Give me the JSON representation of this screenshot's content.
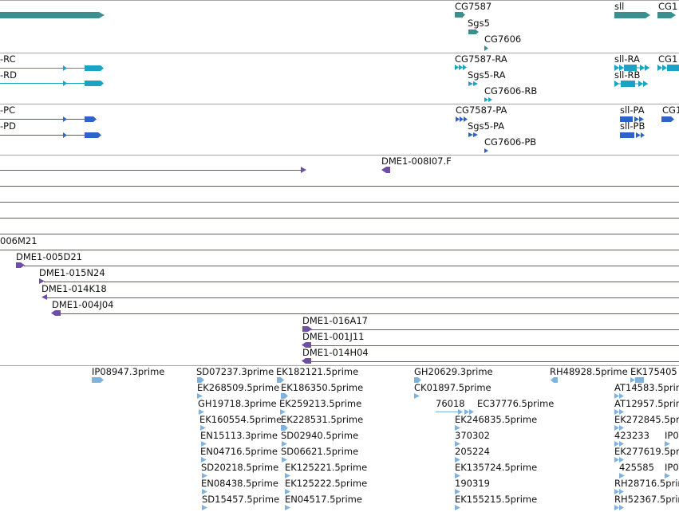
{
  "colors": {
    "gene": "#3a8f8f",
    "transcript_rna": "#1aa3c4",
    "transcript_pep": "#2f63c9",
    "bac": "#6e4fa3",
    "est": "#7fb3df",
    "divider": "#a8a8a8"
  },
  "tracks": {
    "genes": [
      "CG7587",
      "Sgs5",
      "CG7606",
      "sll",
      "CG1"
    ],
    "transcripts": [
      "-RC",
      "-RD",
      "CG7587-RA",
      "Sgs5-RA",
      "CG7606-RB",
      "sll-RA",
      "sll-RB",
      "CG1"
    ],
    "peptides": [
      "-PC",
      "-PD",
      "CG7587-PA",
      "Sgs5-PA",
      "CG7606-PB",
      "sll-PA",
      "sll-PB",
      "CG1"
    ],
    "bacs": [
      "DME1-008I07.F",
      "006M21",
      "DME1-005D21",
      "DME1-015N24",
      "DME1-014K18",
      "DME1-004J04",
      "DME1-016A17",
      "DME1-001J11",
      "DME1-014H04"
    ],
    "ests": [
      "IP08947.3prime",
      "SD07237.3prime",
      "EK182121.5prime",
      "GH20629.3prime",
      "RH48928.5prime",
      "EK175405",
      "EK268509.5prime",
      "EK186350.5prime",
      "CK01897.5prime",
      "AT14583.5prime",
      "GH19718.3prime",
      "EK259213.5prime",
      "76018",
      "EC37776.5prime",
      "AT12957.5prime",
      "EK160554.5prime",
      "EK228531.5prime",
      "EK246835.5prime",
      "EK272845.5prime",
      "EN15113.3prime",
      "SD02940.5prime",
      "370302",
      "423233",
      "IP0",
      "EN04716.5prime",
      "SD06621.5prime",
      "205224",
      "EK277619.5prime",
      "SD20218.5prime",
      "EK125221.5prime",
      "EK135724.5prime",
      "425585",
      "IP0",
      "EN08438.5prime",
      "EK125222.5prime",
      "190319",
      "RH28716.5prime",
      "SD15457.5prime",
      "EN04517.5prime",
      "EK155215.5prime",
      "RH52367.5prime"
    ]
  }
}
